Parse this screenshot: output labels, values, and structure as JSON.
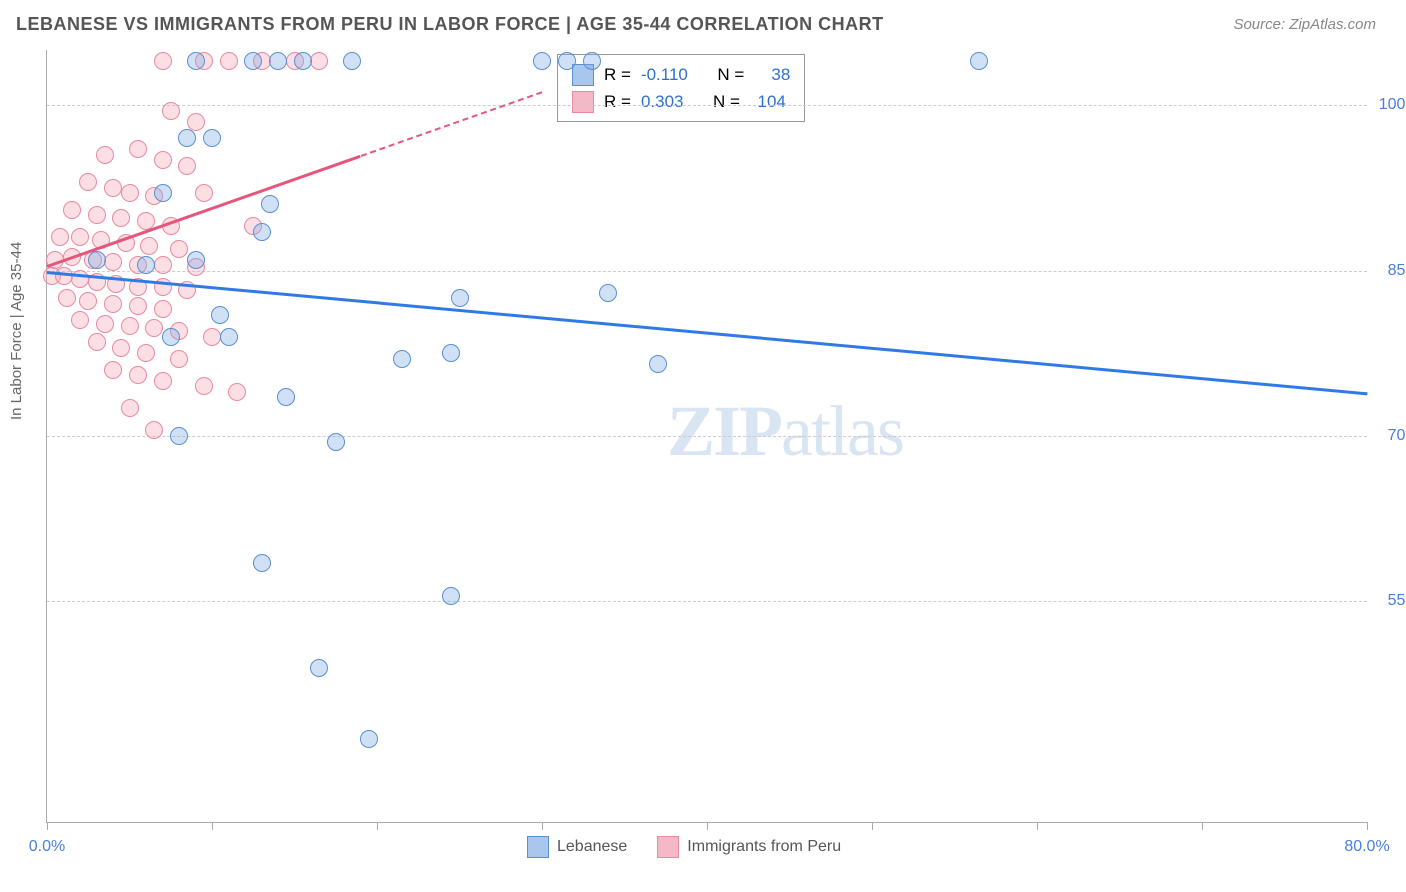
{
  "header": {
    "title": "LEBANESE VS IMMIGRANTS FROM PERU IN LABOR FORCE | AGE 35-44 CORRELATION CHART",
    "source": "Source: ZipAtlas.com"
  },
  "chart": {
    "type": "scatter",
    "ylabel": "In Labor Force | Age 35-44",
    "xlim": [
      0,
      80
    ],
    "ylim": [
      35,
      105
    ],
    "yticks": [
      {
        "value": 100.0,
        "label": "100.0%"
      },
      {
        "value": 85.0,
        "label": "85.0%"
      },
      {
        "value": 70.0,
        "label": "70.0%"
      },
      {
        "value": 55.0,
        "label": "55.0%"
      }
    ],
    "xticks": [
      0,
      10,
      20,
      30,
      40,
      50,
      60,
      70,
      80
    ],
    "xtick_labels": {
      "left": "0.0%",
      "right": "80.0%"
    },
    "background_color": "#ffffff",
    "grid_color": "#cccccc",
    "series": [
      {
        "name": "Lebanese",
        "color_fill": "#a9c7ec",
        "color_stroke": "#5a8fd0",
        "R": -0.11,
        "N": 38,
        "trend": {
          "x1": 0,
          "y1": 85.0,
          "x2": 80,
          "y2": 74.0,
          "color": "#2f7ae5"
        },
        "points": [
          [
            56.5,
            104.0
          ],
          [
            9.0,
            104.0
          ],
          [
            12.5,
            104.0
          ],
          [
            14.0,
            104.0
          ],
          [
            15.5,
            104.0
          ],
          [
            18.5,
            104.0
          ],
          [
            30.0,
            104.0
          ],
          [
            31.5,
            104.0
          ],
          [
            33.0,
            104.0
          ],
          [
            8.5,
            97.0
          ],
          [
            10.0,
            97.0
          ],
          [
            7.0,
            92.0
          ],
          [
            13.5,
            91.0
          ],
          [
            13.0,
            88.5
          ],
          [
            3.0,
            86.0
          ],
          [
            6.0,
            85.5
          ],
          [
            9.0,
            86.0
          ],
          [
            25.0,
            82.5
          ],
          [
            34.0,
            83.0
          ],
          [
            10.5,
            81.0
          ],
          [
            21.5,
            77.0
          ],
          [
            24.5,
            77.5
          ],
          [
            37.0,
            76.5
          ],
          [
            7.5,
            79.0
          ],
          [
            11.0,
            79.0
          ],
          [
            14.5,
            73.5
          ],
          [
            8.0,
            70.0
          ],
          [
            17.5,
            69.5
          ],
          [
            13.0,
            58.5
          ],
          [
            24.5,
            55.5
          ],
          [
            16.5,
            49.0
          ],
          [
            19.5,
            42.5
          ]
        ]
      },
      {
        "name": "Immigrants from Peru",
        "color_fill": "#f5b8c7",
        "color_stroke": "#e88aa0",
        "R": 0.303,
        "N": 104,
        "trend": {
          "x1": 0,
          "y1": 85.5,
          "x2": 19.0,
          "y2": 95.5,
          "color": "#e6557c"
        },
        "trend_dash": {
          "x1": 19.0,
          "y1": 95.5,
          "x2": 30.0,
          "y2": 101.3,
          "color": "#e6557c"
        },
        "points": [
          [
            7.0,
            104.0
          ],
          [
            9.5,
            104.0
          ],
          [
            11.0,
            104.0
          ],
          [
            13.0,
            104.0
          ],
          [
            15.0,
            104.0
          ],
          [
            16.5,
            104.0
          ],
          [
            7.5,
            99.5
          ],
          [
            9.0,
            98.5
          ],
          [
            3.5,
            95.5
          ],
          [
            5.5,
            96.0
          ],
          [
            7.0,
            95.0
          ],
          [
            8.5,
            94.5
          ],
          [
            2.5,
            93.0
          ],
          [
            4.0,
            92.5
          ],
          [
            5.0,
            92.0
          ],
          [
            6.5,
            91.8
          ],
          [
            9.5,
            92.0
          ],
          [
            1.5,
            90.5
          ],
          [
            3.0,
            90.0
          ],
          [
            4.5,
            89.8
          ],
          [
            6.0,
            89.5
          ],
          [
            7.5,
            89.0
          ],
          [
            12.5,
            89.0
          ],
          [
            0.8,
            88.0
          ],
          [
            2.0,
            88.0
          ],
          [
            3.3,
            87.8
          ],
          [
            4.8,
            87.5
          ],
          [
            6.2,
            87.2
          ],
          [
            8.0,
            87.0
          ],
          [
            0.5,
            86.0
          ],
          [
            1.5,
            86.2
          ],
          [
            2.8,
            86.0
          ],
          [
            4.0,
            85.8
          ],
          [
            5.5,
            85.5
          ],
          [
            7.0,
            85.5
          ],
          [
            9.0,
            85.3
          ],
          [
            0.3,
            84.5
          ],
          [
            1.0,
            84.5
          ],
          [
            2.0,
            84.2
          ],
          [
            3.0,
            84.0
          ],
          [
            4.2,
            83.8
          ],
          [
            5.5,
            83.5
          ],
          [
            7.0,
            83.5
          ],
          [
            8.5,
            83.2
          ],
          [
            1.2,
            82.5
          ],
          [
            2.5,
            82.2
          ],
          [
            4.0,
            82.0
          ],
          [
            5.5,
            81.8
          ],
          [
            7.0,
            81.5
          ],
          [
            2.0,
            80.5
          ],
          [
            3.5,
            80.2
          ],
          [
            5.0,
            80.0
          ],
          [
            6.5,
            79.8
          ],
          [
            8.0,
            79.5
          ],
          [
            10.0,
            79.0
          ],
          [
            3.0,
            78.5
          ],
          [
            4.5,
            78.0
          ],
          [
            6.0,
            77.5
          ],
          [
            8.0,
            77.0
          ],
          [
            4.0,
            76.0
          ],
          [
            5.5,
            75.5
          ],
          [
            7.0,
            75.0
          ],
          [
            9.5,
            74.5
          ],
          [
            11.5,
            74.0
          ],
          [
            5.0,
            72.5
          ],
          [
            6.5,
            70.5
          ]
        ]
      }
    ],
    "stats_box": {
      "R_label": "R =",
      "N_label": "N ="
    },
    "legend": {
      "items": [
        "Lebanese",
        "Immigrants from Peru"
      ]
    },
    "watermark": {
      "bold": "ZIP",
      "light": "atlas"
    }
  }
}
